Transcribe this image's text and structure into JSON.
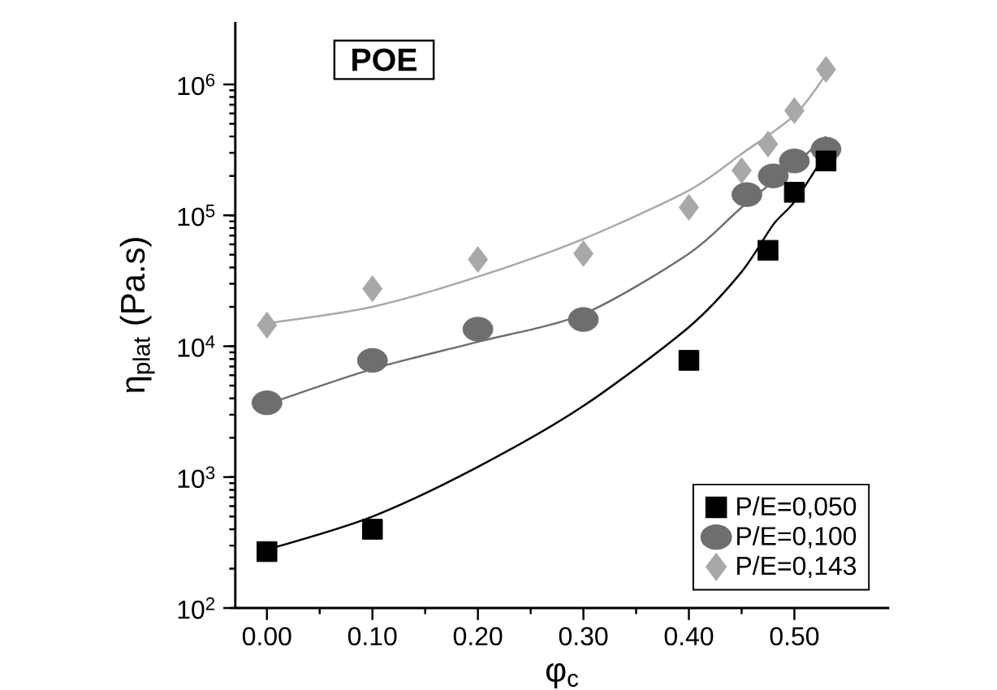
{
  "chart_data": {
    "type": "scatter",
    "xlabel": "φ$_{c}$",
    "ylabel": "η$_{plat}$ (Pa.s)",
    "log": "y",
    "xlim": [
      -0.03,
      0.59
    ],
    "ylim": [
      100,
      3000000
    ],
    "xticks": [
      {
        "value": 0,
        "label": "0.00"
      },
      {
        "value": 0.1,
        "label": "0.10"
      },
      {
        "value": 0.2,
        "label": "0.20"
      },
      {
        "value": 0.3,
        "label": "0.30"
      },
      {
        "value": 0.4,
        "label": "0.40"
      },
      {
        "value": 0.5,
        "label": "0.50"
      }
    ],
    "yticks": [
      {
        "value": 100,
        "label": "10$^{2}$"
      },
      {
        "value": 1000,
        "label": "10$^{3}$"
      },
      {
        "value": 10000,
        "label": "10$^{4}$"
      },
      {
        "value": 100000,
        "label": "10$^{5}$"
      },
      {
        "value": 1000000,
        "label": "10$^{6}$"
      }
    ],
    "legend": "bottom right",
    "annotations": [
      "POE"
    ],
    "series": [
      {
        "name": "P/E=0,050",
        "color": "#000000",
        "marker": "square",
        "x": [
          0,
          0.1,
          0.4,
          0.475,
          0.5,
          0.53
        ],
        "values": [
          270,
          400,
          7800,
          54000,
          150000,
          260000
        ]
      },
      {
        "name": "P/E=0,100",
        "color": "#6e6e6e",
        "marker": "circle",
        "x": [
          0,
          0.1,
          0.2,
          0.3,
          0.455,
          0.48,
          0.5,
          0.53
        ],
        "values": [
          3700,
          7800,
          13500,
          16000,
          144000,
          200000,
          260000,
          320000
        ]
      },
      {
        "name": "P/E=0,143",
        "color": "#a8a8a8",
        "marker": "diamond",
        "x": [
          0,
          0.1,
          0.2,
          0.3,
          0.4,
          0.45,
          0.475,
          0.5,
          0.53
        ],
        "values": [
          14500,
          27500,
          46000,
          51000,
          115000,
          220000,
          350000,
          630000,
          1300000
        ]
      },
      {
        "type": "line",
        "color": "#000000",
        "x": [
          0,
          0.1,
          0.2,
          0.3,
          0.4,
          0.45,
          0.48,
          0.5,
          0.53
        ],
        "values": [
          280,
          500,
          1200,
          3500,
          14000,
          37000,
          85000,
          127000,
          300000
        ]
      },
      {
        "type": "line",
        "color": "#6e6e6e",
        "x": [
          0,
          0.1,
          0.2,
          0.3,
          0.4,
          0.45,
          0.5,
          0.53
        ],
        "values": [
          3600,
          6700,
          10800,
          17600,
          51000,
          115000,
          245000,
          400000
        ]
      },
      {
        "type": "line",
        "color": "#a8a8a8",
        "x": [
          0,
          0.1,
          0.2,
          0.3,
          0.4,
          0.45,
          0.5,
          0.53
        ],
        "values": [
          15000,
          20000,
          34000,
          66000,
          155000,
          295000,
          580000,
          1200000
        ]
      }
    ]
  }
}
